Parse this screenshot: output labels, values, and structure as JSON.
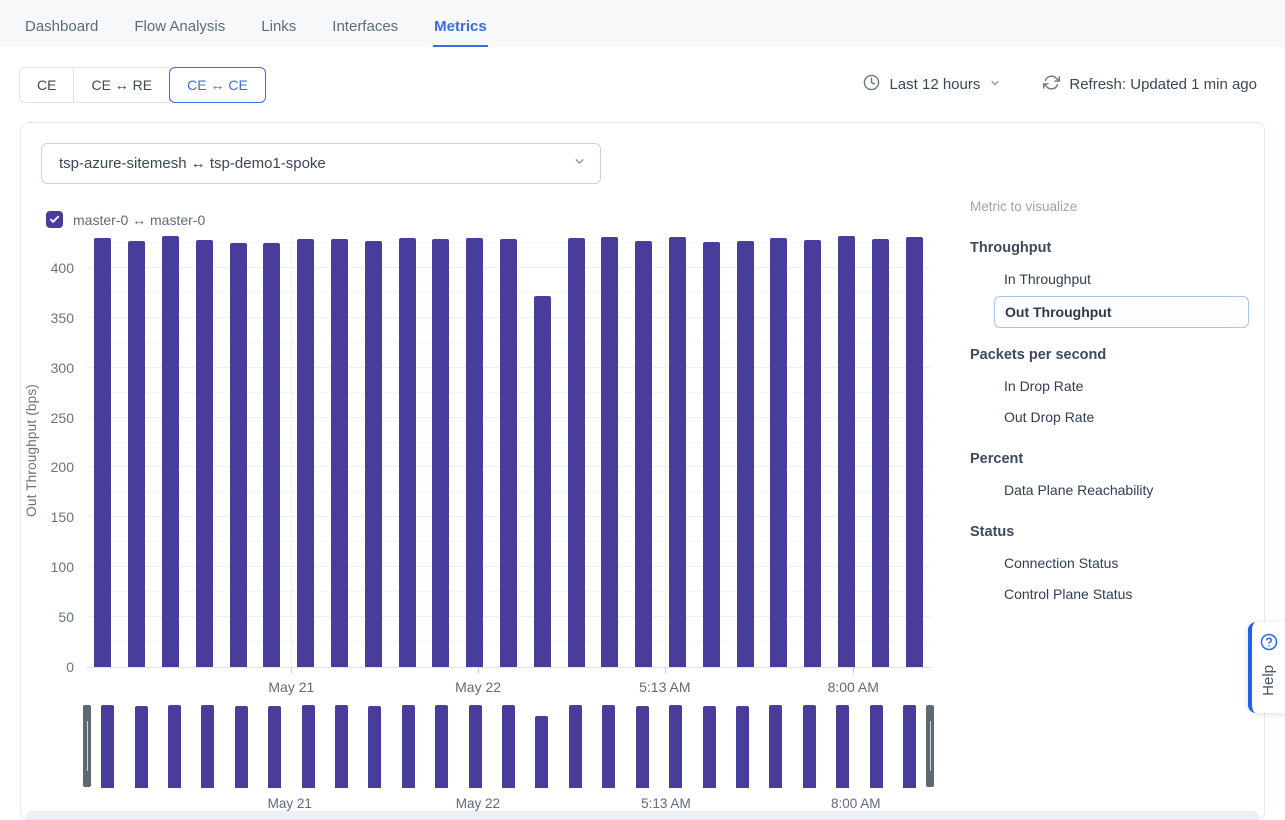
{
  "colors": {
    "accent": "#3b6be3",
    "bar": "#483d9b",
    "help_border": "#2160e8",
    "selected_item_border": "#a9c4f2"
  },
  "nav": {
    "items": [
      {
        "label": "Dashboard"
      },
      {
        "label": "Flow Analysis"
      },
      {
        "label": "Links"
      },
      {
        "label": "Interfaces"
      },
      {
        "label": "Metrics",
        "active": true
      }
    ]
  },
  "toolbar": {
    "segments": [
      {
        "label": "CE"
      },
      {
        "label": "CE ↔ RE"
      },
      {
        "label": "CE ↔ CE",
        "active": true
      }
    ],
    "time_range": "Last 12 hours",
    "refresh_status": "Refresh: Updated 1 min ago"
  },
  "filters": {
    "pair_select_value": "tsp-azure-sitemesh ↔ tsp-demo1-spoke",
    "legend_checkbox": {
      "label": "master-0 ↔ master-0",
      "checked": true
    }
  },
  "chart_data": {
    "type": "bar",
    "title": "",
    "xlabel": "",
    "ylabel": "Out Throughput (bps)",
    "ylim": [
      0,
      435
    ],
    "y_ticks": [
      0,
      50,
      100,
      150,
      200,
      250,
      300,
      350,
      400
    ],
    "grid": true,
    "minor_grid_step": 25,
    "x_tick_labels": [
      "May 21",
      "May 22",
      "5:13 AM",
      "8:00 AM"
    ],
    "x_tick_positions_pct": [
      24.3,
      46.4,
      68.5,
      90.8
    ],
    "series": [
      {
        "name": "master-0 ↔ master-0",
        "values": [
          430,
          427,
          432,
          428,
          425,
          425,
          429,
          429,
          427,
          430,
          429,
          430,
          429,
          372,
          430,
          431,
          427,
          431,
          426,
          427,
          430,
          428,
          432,
          429,
          431
        ]
      }
    ],
    "has_minimap_brush": true
  },
  "metrics_panel": {
    "title": "Metric to visualize",
    "groups": [
      {
        "header": "Throughput",
        "items": [
          {
            "label": "In Throughput"
          },
          {
            "label": "Out Throughput",
            "selected": true
          }
        ]
      },
      {
        "header": "Packets per second",
        "items": [
          {
            "label": "In Drop Rate"
          },
          {
            "label": "Out Drop Rate"
          }
        ]
      },
      {
        "header": "Percent",
        "items": [
          {
            "label": "Data Plane Reachability"
          }
        ]
      },
      {
        "header": "Status",
        "items": [
          {
            "label": "Connection Status"
          },
          {
            "label": "Control Plane Status"
          }
        ]
      }
    ]
  },
  "help": {
    "label": "Help"
  }
}
